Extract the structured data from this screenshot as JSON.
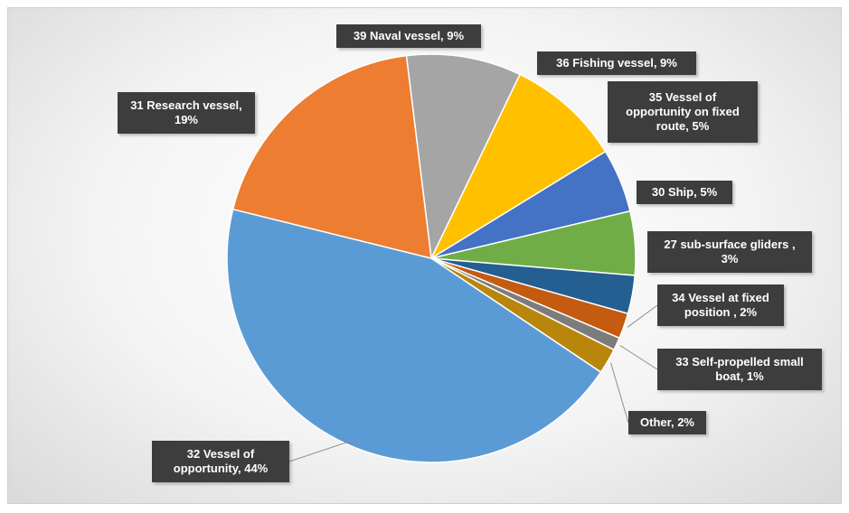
{
  "chart_data": {
    "type": "pie",
    "slices": [
      {
        "label": "39 Naval vessel",
        "value": 9,
        "text": "39 Naval vessel, 9%",
        "color": "#a5a5a5"
      },
      {
        "label": "36 Fishing vessel",
        "value": 9,
        "text": "36 Fishing vessel, 9%",
        "color": "#ffc000"
      },
      {
        "label": "35 Vessel of opportunity on fixed route",
        "value": 5,
        "text": "35 Vessel of\nopportunity on fixed\nroute, 5%",
        "color": "#4472c4"
      },
      {
        "label": "30 Ship",
        "value": 5,
        "text": "30 Ship, 5%",
        "color": "#70ad47"
      },
      {
        "label": "27 sub-surface gliders",
        "value": 3,
        "text": "27 sub-surface gliders ,\n3%",
        "color": "#255e91"
      },
      {
        "label": "34 Vessel at fixed position",
        "value": 2,
        "text": "34 Vessel at fixed\nposition , 2%",
        "color": "#c55a11"
      },
      {
        "label": "33 Self-propelled small boat",
        "value": 1,
        "text": "33 Self-propelled small\nboat, 1%",
        "color": "#7c7c7c"
      },
      {
        "label": "Other",
        "value": 2,
        "text": "Other, 2%",
        "color": "#b8860b"
      },
      {
        "label": "32 Vessel of opportunity",
        "value": 44,
        "text": "32 Vessel of\nopportunity, 44%",
        "color": "#5b9bd5"
      },
      {
        "label": "31 Research vessel",
        "value": 19,
        "text": "31 Research vessel,\n19%",
        "color": "#ed7d31"
      }
    ],
    "legend": "none"
  }
}
